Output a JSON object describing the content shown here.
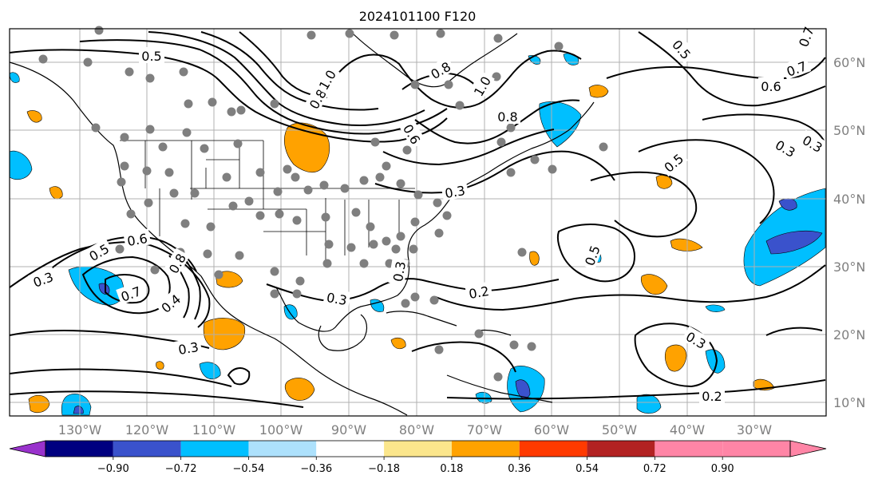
{
  "title": "2024101100 F120",
  "map": {
    "lon_labels": [
      "130°W",
      "120°W",
      "110°W",
      "100°W",
      "90°W",
      "80°W",
      "70°W",
      "60°W",
      "50°W",
      "40°W",
      "30°W"
    ],
    "lat_labels": [
      "60°N",
      "50°N",
      "40°N",
      "30°N",
      "20°N",
      "10°N"
    ],
    "contour_labels": [
      "0.5",
      "0.6",
      "0.5",
      "0.3",
      "0.7",
      "0.4",
      "0.8",
      "0.3",
      "0.3",
      "0.3",
      "0.8",
      "1.0",
      "0.6",
      "0.8",
      "1.0",
      "0.8",
      "0.5",
      "0.6",
      "0.7",
      "0.3",
      "0.5",
      "0.5",
      "0.3",
      "0.2",
      "0.3",
      "0.3",
      "0.2",
      "0.7"
    ]
  },
  "colorbar": {
    "ticks": [
      "−0.90",
      "−0.72",
      "−0.54",
      "−0.36",
      "−0.18",
      "0.18",
      "0.36",
      "0.54",
      "0.72",
      "0.90"
    ],
    "colors": [
      "#9932cc",
      "#000080",
      "#3a52cc",
      "#00bfff",
      "#ade1fc",
      "#ffffff",
      "#fbe68c",
      "#ffa200",
      "#ff3a00",
      "#b22222",
      "#ff85a6",
      "#ff85a6"
    ]
  }
}
